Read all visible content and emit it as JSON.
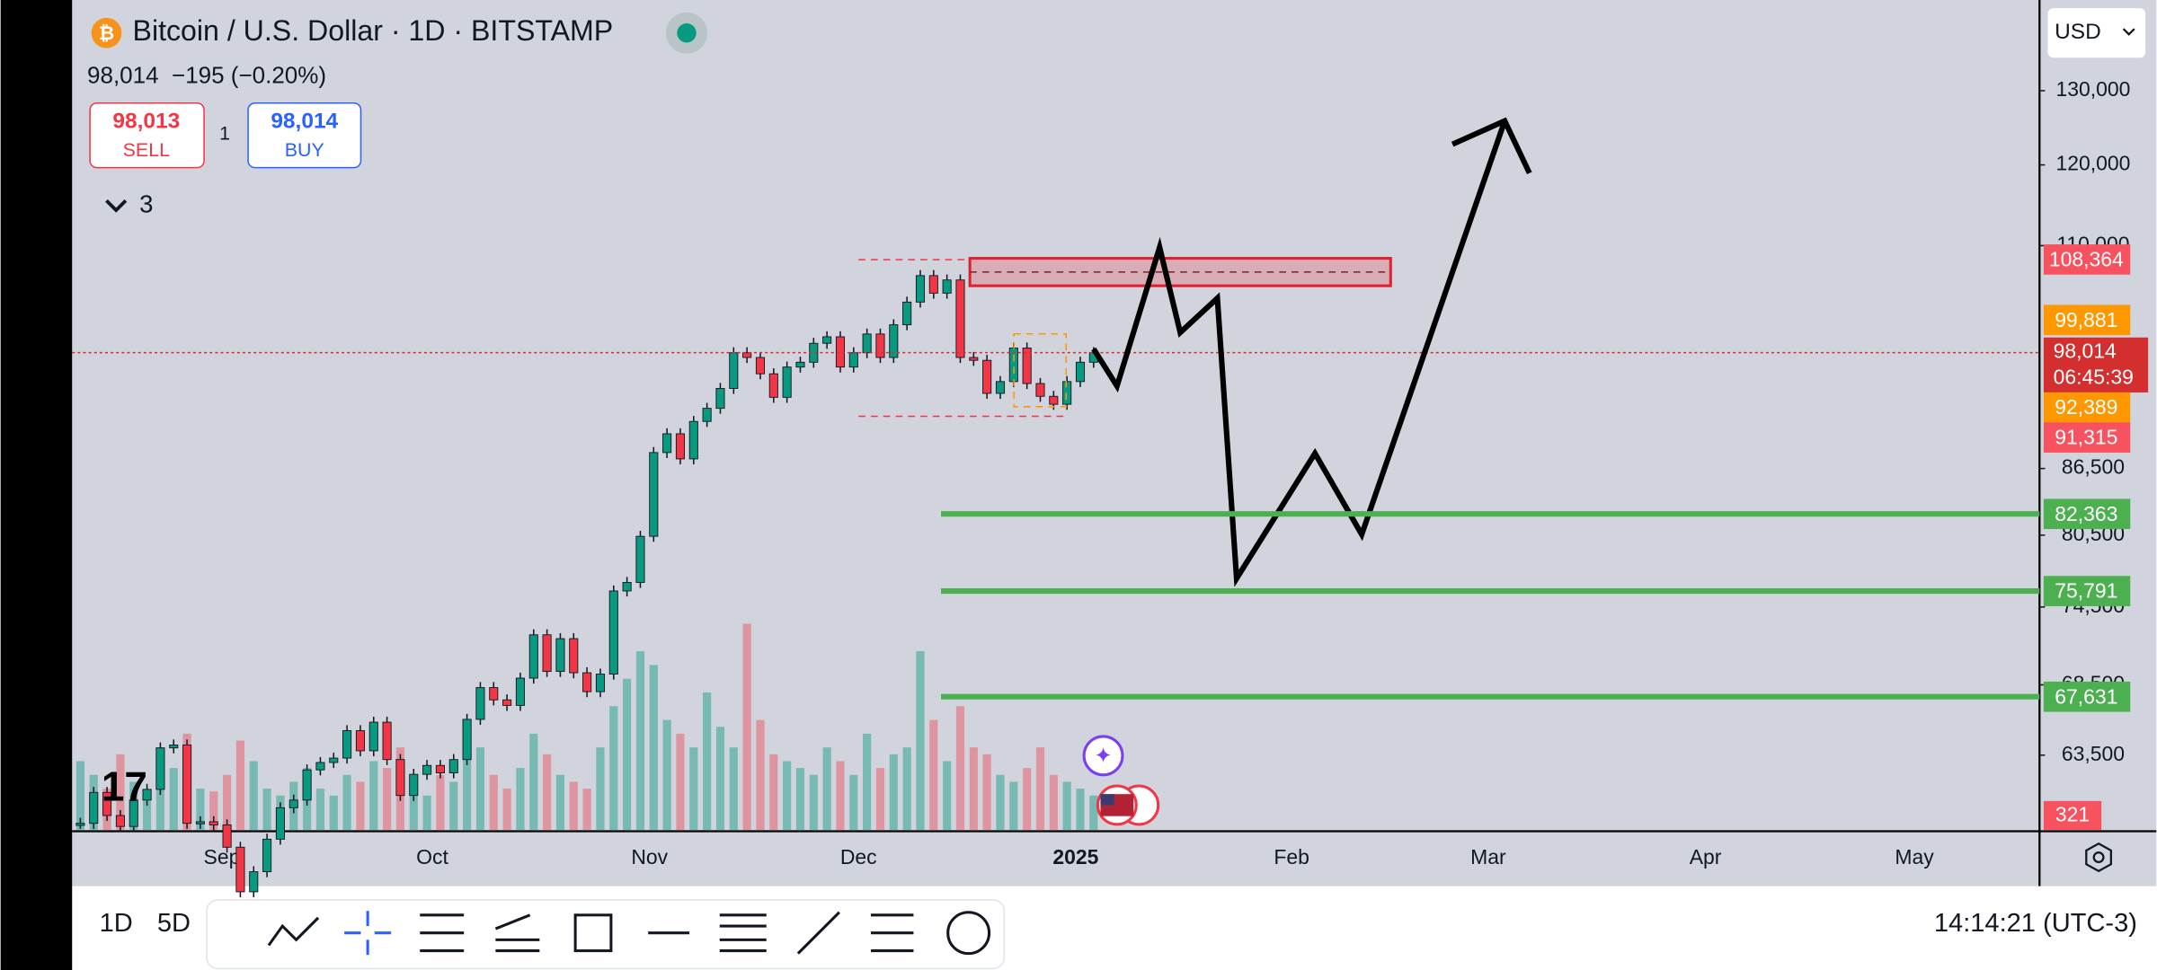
{
  "header": {
    "title": "Bitcoin / U.S. Dollar · 1D · BITSTAMP",
    "quote": "98,014  −195 (−0.20%)",
    "sell_price": "98,013",
    "sell_label": "SELL",
    "quantity": "1",
    "buy_price": "98,014",
    "buy_label": "BUY",
    "indicators_count": "3",
    "currency": "USD"
  },
  "chart_data": {
    "type": "candlestick",
    "log_scale": true,
    "yticks": [
      {
        "value": 130000,
        "label": "130,000"
      },
      {
        "value": 120000,
        "label": "120,000"
      },
      {
        "value": 110000,
        "label": "110,000"
      },
      {
        "value": 86500,
        "label": "86,500"
      },
      {
        "value": 80500,
        "label": "80,500"
      },
      {
        "value": 74500,
        "label": "74,500"
      },
      {
        "value": 68500,
        "label": "68,500"
      },
      {
        "value": 63500,
        "label": "63,500"
      }
    ],
    "x_labels": [
      "Sep",
      "Oct",
      "Nov",
      "Dec",
      "2025",
      "Feb",
      "Mar",
      "Apr",
      "May"
    ],
    "closes": [
      59000,
      61000,
      59500,
      58800,
      60500,
      61200,
      64000,
      64200,
      59000,
      59100,
      58900,
      57500,
      54800,
      56000,
      58000,
      60000,
      60500,
      62500,
      63000,
      63300,
      65200,
      63800,
      65800,
      63200,
      60800,
      62200,
      62800,
      62300,
      63200,
      66000,
      68300,
      67400,
      67000,
      69000,
      72300,
      69500,
      72000,
      69400,
      68000,
      69300,
      75800,
      76500,
      80400,
      88000,
      89800,
      87400,
      91000,
      92300,
      94300,
      98000,
      97500,
      95800,
      93400,
      96500,
      97000,
      99000,
      99700,
      96500,
      98000,
      100000,
      97500,
      101000,
      103500,
      106500,
      104500,
      106000,
      97500,
      97200,
      93800,
      95000,
      98500,
      94800,
      93500,
      92700,
      95000,
      97000,
      98014
    ],
    "volumes": [
      50,
      40,
      30,
      55,
      35,
      25,
      60,
      45,
      70,
      30,
      28,
      40,
      65,
      50,
      30,
      25,
      35,
      45,
      30,
      25,
      40,
      35,
      50,
      45,
      60,
      30,
      25,
      40,
      35,
      55,
      60,
      40,
      30,
      45,
      70,
      55,
      40,
      35,
      30,
      60,
      90,
      110,
      130,
      120,
      80,
      70,
      60,
      100,
      75,
      60,
      150,
      80,
      55,
      50,
      45,
      40,
      60,
      50,
      40,
      70,
      45,
      55,
      60,
      130,
      80,
      50,
      90,
      60,
      55,
      40,
      35,
      45,
      60,
      40,
      35,
      30,
      25
    ],
    "price_tags": [
      {
        "value": 108364,
        "label": "108,364",
        "color": "#f7525f"
      },
      {
        "value": 99881,
        "label": "99,881",
        "color": "#ff9800"
      },
      {
        "value": 98014,
        "label": "98,014",
        "color": "#d32f2f"
      },
      {
        "value": 92389,
        "label": "92,389",
        "color": "#ff9800"
      },
      {
        "value": 91315,
        "label": "91,315",
        "color": "#f7525f"
      }
    ],
    "countdown": "06:45:39",
    "levels": [
      {
        "value": 82363,
        "label": "82,363"
      },
      {
        "value": 75791,
        "label": "75,791"
      },
      {
        "value": 67631,
        "label": "67,631"
      }
    ],
    "volume_tag": "321"
  },
  "toolbar": {
    "interval_1": "1D",
    "interval_2": "5D",
    "clock": "14:14:21 (UTC-3)"
  }
}
